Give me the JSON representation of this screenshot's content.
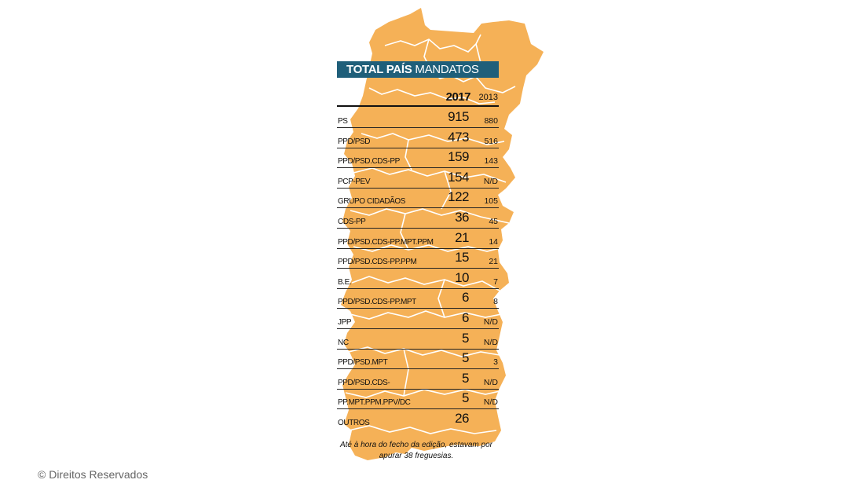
{
  "colors": {
    "map_fill": "#f5b157",
    "banner_bg": "#1f5f7a",
    "text": "#111111"
  },
  "chart_data": {
    "type": "table",
    "title_bold": "TOTAL PAÍS",
    "title_rest": "MANDATOS",
    "columns": [
      "2017",
      "2013"
    ],
    "rows": [
      {
        "party": "PS",
        "y2017": "915",
        "y2013": "880"
      },
      {
        "party": "PPD/PSD",
        "y2017": "473",
        "y2013": "516"
      },
      {
        "party": "PPD/PSD.CDS-PP",
        "y2017": "159",
        "y2013": "143"
      },
      {
        "party": "PCP-PEV",
        "y2017": "154",
        "y2013": "N/D"
      },
      {
        "party": "GRUPO CIDADÃOS",
        "y2017": "122",
        "y2013": "105"
      },
      {
        "party": "CDS-PP",
        "y2017": "36",
        "y2013": "45"
      },
      {
        "party": "PPD/PSD.CDS-PP.MPT.PPM",
        "y2017": "21",
        "y2013": "14"
      },
      {
        "party": "PPD/PSD.CDS-PP.PPM",
        "y2017": "15",
        "y2013": "21"
      },
      {
        "party": "B.E.",
        "y2017": "10",
        "y2013": "7"
      },
      {
        "party": "PPD/PSD.CDS-PP.MPT",
        "y2017": "6",
        "y2013": "8"
      },
      {
        "party": "JPP",
        "y2017": "6",
        "y2013": "N/D"
      },
      {
        "party": "NC",
        "y2017": "5",
        "y2013": "N/D"
      },
      {
        "party": "PPD/PSD.MPT",
        "y2017": "5",
        "y2013": "3"
      },
      {
        "party": "PPD/PSD.CDS-",
        "y2017": "5",
        "y2013": "N/D"
      },
      {
        "party": "PP.MPT.PPM.PPV/DC",
        "y2017": "5",
        "y2013": "N/D"
      },
      {
        "party": "OUTROS",
        "y2017": "26",
        "y2013": ""
      }
    ],
    "note": "Até à hora do fecho da edição, estavam por apurar 38 freguesias."
  },
  "credit": "© Direitos Reservados"
}
